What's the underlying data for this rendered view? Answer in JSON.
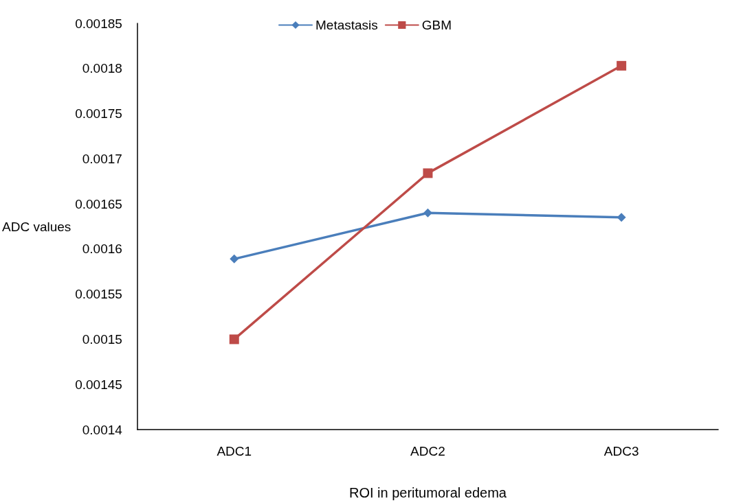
{
  "chart_data": {
    "type": "line",
    "xlabel": "ROI in peritumoral edema",
    "ylabel": "ADC values",
    "categories": [
      "ADC1",
      "ADC2",
      "ADC3"
    ],
    "series": [
      {
        "name": "Metastasis",
        "color": "#4a7ebb",
        "marker": "diamond",
        "values": [
          0.001589,
          0.00164,
          0.001635
        ]
      },
      {
        "name": "GBM",
        "color": "#be4b48",
        "marker": "square",
        "values": [
          0.0015,
          0.001684,
          0.001803
        ]
      }
    ],
    "ylim": [
      0.0014,
      0.00185
    ],
    "yticks": [
      0.0014,
      0.00145,
      0.0015,
      0.00155,
      0.0016,
      0.00165,
      0.0017,
      0.00175,
      0.0018,
      0.00185
    ],
    "grid": false,
    "legend": "top",
    "line_style": "solid"
  }
}
